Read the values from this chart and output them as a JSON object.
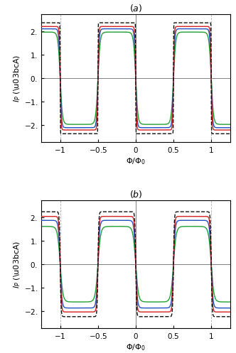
{
  "title_a": "($a$)",
  "title_b": "($b$)",
  "xlabel": "$\\Phi/\\Phi_0$",
  "ylabel": "$I_P$ (\\u03bcA)",
  "xlim": [
    -1.25,
    1.25
  ],
  "ylim": [
    -2.75,
    2.75
  ],
  "yticks": [
    -2.0,
    -1.0,
    0.0,
    1.0,
    2.0
  ],
  "xticks": [
    -1.0,
    -0.5,
    0.0,
    0.5,
    1.0
  ],
  "colors": [
    "#111111",
    "#d42020",
    "#2050c0",
    "#20a030"
  ],
  "linestyles": [
    "--",
    "-",
    "-",
    "-"
  ],
  "linewidths": [
    1.0,
    1.0,
    1.0,
    1.0
  ],
  "panel_a": {
    "amplitudes": [
      2.38,
      2.22,
      2.12,
      1.98
    ],
    "sharpness": [
      60,
      14,
      9,
      5.5
    ]
  },
  "panel_b": {
    "amplitudes": [
      2.25,
      2.05,
      1.88,
      1.62
    ],
    "sharpness": [
      14,
      10,
      7,
      4.5
    ]
  }
}
